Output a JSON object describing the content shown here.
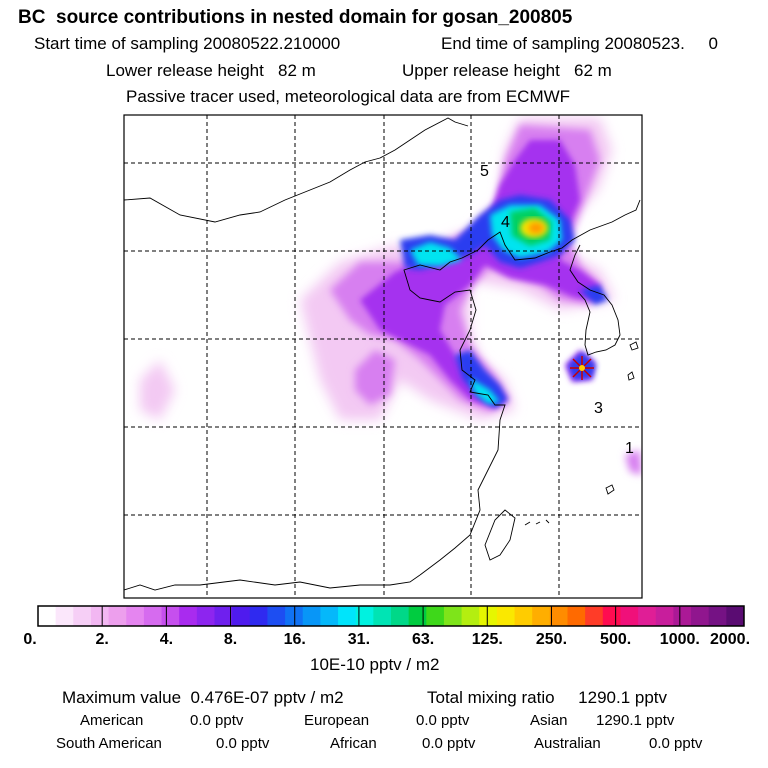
{
  "header": {
    "title": "BC  source contributions in nested domain for gosan_200805",
    "start_label": "Start time of sampling 20080522.210000",
    "end_label": "End time of sampling 20080523.     0",
    "lower_label": "Lower release height   82 m",
    "upper_label": "Upper release height   62 m",
    "tracer_note": "Passive tracer used, meteorological data are from ECMWF"
  },
  "map": {
    "markers": [
      {
        "label": "5"
      },
      {
        "label": "4"
      },
      {
        "label": "3"
      },
      {
        "label": "1"
      }
    ]
  },
  "colorbar": {
    "colors": [
      "#ffffff",
      "#fbe7fb",
      "#f6cff6",
      "#f2b7f2",
      "#ed9fed",
      "#e585f0",
      "#d66bef",
      "#c64fee",
      "#a92bef",
      "#8d25ef",
      "#6f20ee",
      "#4f1bee",
      "#2f2af0",
      "#1d4ef2",
      "#1072f5",
      "#0896f7",
      "#05b8fa",
      "#00e4fb",
      "#00f2e0",
      "#00e4b4",
      "#00d888",
      "#00cc40",
      "#3ed81a",
      "#7ee41a",
      "#b4ee10",
      "#e6f600",
      "#fae800",
      "#ffcc00",
      "#ffae00",
      "#ff8c00",
      "#ff6a00",
      "#ff3c28",
      "#ff0c50",
      "#f0107a",
      "#e01e96",
      "#c81e9c",
      "#ab1996",
      "#90168e",
      "#751284",
      "#5a0c72"
    ],
    "ticks": [
      "0.",
      "2.",
      "4.",
      "8.",
      "16.",
      "31.",
      "63.",
      "125.",
      "250.",
      "500.",
      "1000.",
      "2000."
    ],
    "unit": "10E-10 pptv / m2"
  },
  "stats": {
    "max_value": "Maximum value  0.476E-07 pptv / m2",
    "total": "Total mixing ratio     1290.1 pptv",
    "american_label": "American",
    "american_value": "0.0 pptv",
    "european_label": "European",
    "european_value": "0.0 pptv",
    "asian_label": "Asian",
    "asian_value": "1290.1 pptv",
    "south_american_label": "South American",
    "south_american_value": "0.0 pptv",
    "african_label": "African",
    "african_value": "0.0 pptv",
    "australian_label": "Australian",
    "australian_value": "0.0 pptv"
  }
}
